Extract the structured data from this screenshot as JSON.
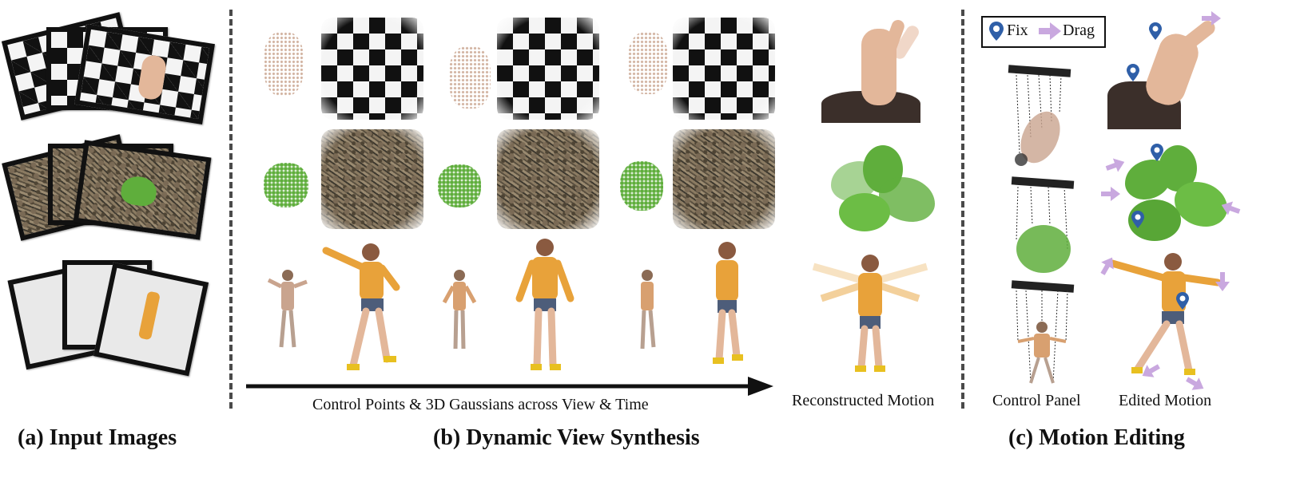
{
  "sections": {
    "a_title": "(a) Input Images",
    "b_title": "(b) Dynamic View Synthesis",
    "c_title": "(c) Motion Editing"
  },
  "captions": {
    "arrow_caption": "Control Points & 3D Gaussians  across View & Time",
    "reconstructed": "Reconstructed Motion",
    "control_panel": "Control Panel",
    "edited_motion": "Edited Motion"
  },
  "legend": {
    "fix_label": "Fix",
    "drag_label": "Drag",
    "fix_icon": "map-pin-icon",
    "drag_icon": "arrow-right-icon"
  },
  "colors": {
    "pin": "#2f5fa8",
    "drag_arrow": "#c9a8df",
    "shirt": "#e8a23a",
    "leaf": "#5fae3c",
    "skin": "#e3b79a"
  },
  "scenes": [
    "hand",
    "plant",
    "person"
  ]
}
